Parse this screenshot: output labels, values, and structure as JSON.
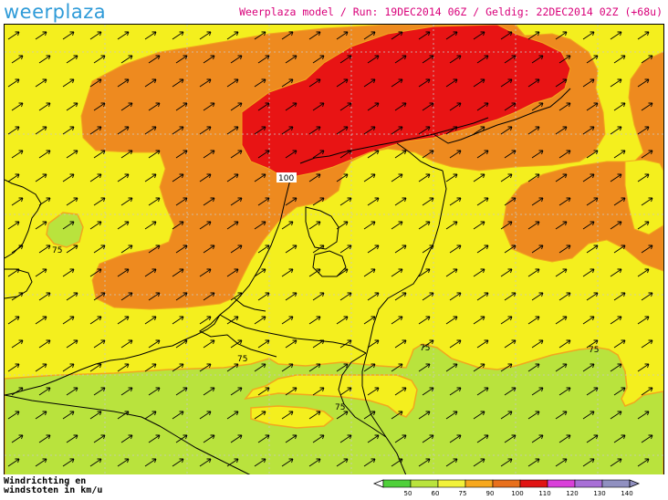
{
  "header": {
    "logo_part1": "weer",
    "logo_part2": "plaza",
    "run_info": "Weerplaza model / Run: 19DEC2014 06Z / Geldig: 22DEC2014 02Z (+68u)"
  },
  "footer": {
    "title_line1": "Windrichting en",
    "title_line2": "windstoten in km/u"
  },
  "legend": {
    "items": [
      {
        "label": "50",
        "color": "#4fd03a"
      },
      {
        "label": "60",
        "color": "#b9e33d"
      },
      {
        "label": "75",
        "color": "#f2f23a"
      },
      {
        "label": "90",
        "color": "#f7a81e"
      },
      {
        "label": "100",
        "color": "#e8701c"
      },
      {
        "label": "110",
        "color": "#e01414"
      },
      {
        "label": "120",
        "color": "#d93fd9"
      },
      {
        "label": "130",
        "color": "#a86fd6"
      },
      {
        "label": "140",
        "color": "#9090c0"
      }
    ]
  },
  "map": {
    "contour_labels": [
      "100",
      "75",
      "75",
      "75",
      "75",
      "75"
    ],
    "colors": {
      "band_60_75": "#b9e33d",
      "band_75_90": "#f4ef1e",
      "band_90_100": "#ee8a1f",
      "band_100_110": "#e81414",
      "contour_line": "#f7a81e",
      "coastline": "#000000"
    }
  }
}
